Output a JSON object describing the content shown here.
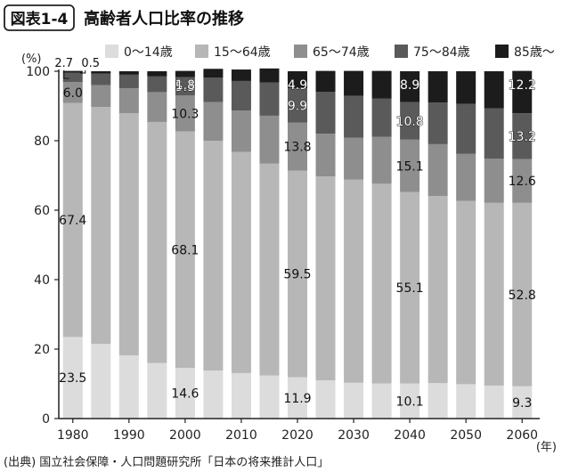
{
  "chart_data": {
    "type": "bar",
    "stacked": true,
    "figure_label": "図表1-4",
    "title": "高齢者人口比率の推移",
    "y_unit": "(%)",
    "x_unit": "(年)",
    "source": "(出典) 国立社会保障・人口問題研究所「日本の将来推計人口」",
    "ylim": [
      0,
      100
    ],
    "y_ticks": [
      0,
      20,
      40,
      60,
      80,
      100
    ],
    "grid": false,
    "legend_position": "top",
    "x_tick_labels": [
      "1980",
      "1990",
      "2000",
      "2010",
      "2020",
      "2030",
      "2040",
      "2050",
      "2060"
    ],
    "categories": [
      "1980",
      "1985",
      "1990",
      "1995",
      "2000",
      "2005",
      "2010",
      "2015",
      "2020",
      "2025",
      "2030",
      "2035",
      "2040",
      "2045",
      "2050",
      "2055",
      "2060"
    ],
    "series": [
      {
        "name": "0〜14歳",
        "color": "#dcdcdc",
        "values": [
          23.5,
          21.5,
          18.2,
          16.0,
          14.6,
          13.8,
          13.1,
          12.4,
          11.9,
          11.0,
          10.3,
          10.1,
          10.1,
          10.2,
          9.9,
          9.5,
          9.3
        ]
      },
      {
        "name": "15〜64歳",
        "color": "#b7b7b7",
        "values": [
          67.4,
          68.2,
          69.7,
          69.4,
          68.1,
          66.2,
          63.7,
          61.0,
          59.5,
          58.7,
          58.5,
          57.5,
          55.1,
          53.9,
          52.8,
          52.6,
          52.8
        ]
      },
      {
        "name": "65〜74歳",
        "color": "#8e8e8e",
        "values": [
          6.0,
          6.3,
          7.2,
          8.6,
          10.3,
          11.1,
          11.9,
          13.8,
          13.8,
          12.3,
          12.1,
          13.5,
          15.1,
          14.9,
          13.5,
          12.7,
          12.6
        ]
      },
      {
        "name": "75〜84歳",
        "color": "#5a5a5a",
        "values": [
          2.7,
          3.3,
          3.9,
          4.5,
          5.3,
          7.1,
          8.5,
          9.6,
          9.9,
          12.1,
          12.0,
          11.0,
          10.8,
          12.0,
          14.4,
          14.5,
          13.2
        ]
      },
      {
        "name": "85歳〜",
        "color": "#1c1c1c",
        "values": [
          0.5,
          0.7,
          1.0,
          1.5,
          1.8,
          2.5,
          3.3,
          4.0,
          4.9,
          6.0,
          7.2,
          8.0,
          8.9,
          9.0,
          9.4,
          10.7,
          12.2
        ]
      }
    ],
    "data_labels": [
      {
        "text": "23.5",
        "cat": 0,
        "series": 0
      },
      {
        "text": "67.4",
        "cat": 0,
        "series": 1
      },
      {
        "text": "6.0",
        "cat": 0,
        "series": 2
      },
      {
        "text": "14.6",
        "cat": 4,
        "series": 0
      },
      {
        "text": "68.1",
        "cat": 4,
        "series": 1
      },
      {
        "text": "10.3",
        "cat": 4,
        "series": 2
      },
      {
        "text": "5.3",
        "cat": 4,
        "series": 3
      },
      {
        "text": "1.8",
        "cat": 4,
        "series": 4
      },
      {
        "text": "11.9",
        "cat": 8,
        "series": 0
      },
      {
        "text": "59.5",
        "cat": 8,
        "series": 1
      },
      {
        "text": "13.8",
        "cat": 8,
        "series": 2
      },
      {
        "text": "9.9",
        "cat": 8,
        "series": 3
      },
      {
        "text": "4.9",
        "cat": 8,
        "series": 4
      },
      {
        "text": "10.1",
        "cat": 12,
        "series": 0
      },
      {
        "text": "55.1",
        "cat": 12,
        "series": 1
      },
      {
        "text": "15.1",
        "cat": 12,
        "series": 2
      },
      {
        "text": "10.8",
        "cat": 12,
        "series": 3
      },
      {
        "text": "8.9",
        "cat": 12,
        "series": 4
      },
      {
        "text": "9.3",
        "cat": 16,
        "series": 0
      },
      {
        "text": "52.8",
        "cat": 16,
        "series": 1
      },
      {
        "text": "12.6",
        "cat": 16,
        "series": 2
      },
      {
        "text": "13.2",
        "cat": 16,
        "series": 3
      },
      {
        "text": "12.2",
        "cat": 16,
        "series": 4
      }
    ],
    "top_callouts": [
      {
        "text": "2.7",
        "series": 3
      },
      {
        "text": "0.5",
        "series": 4
      }
    ]
  }
}
